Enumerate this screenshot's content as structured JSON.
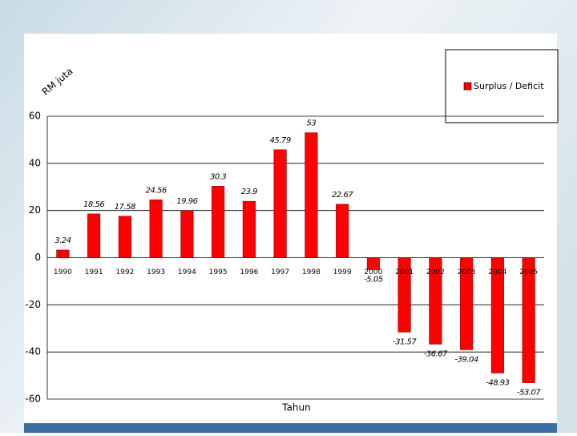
{
  "chart_data": {
    "type": "bar",
    "y_label": "RM juta",
    "x_label": "Tahun",
    "categories": [
      "1990",
      "1991",
      "1992",
      "1993",
      "1994",
      "1995",
      "1996",
      "1997",
      "1998",
      "1999",
      "2000",
      "2001",
      "2002",
      "2003",
      "2004",
      "2005"
    ],
    "series": [
      {
        "name": "Surplus / Deficit",
        "color": "#ff0000",
        "values": [
          3.24,
          18.56,
          17.58,
          24.56,
          19.96,
          30.3,
          23.9,
          45.79,
          53,
          22.67,
          -5.05,
          -31.57,
          -36.67,
          -39.04,
          -48.93,
          -53.07
        ]
      }
    ],
    "ylim": [
      -60,
      60
    ],
    "yticks": [
      -60,
      -40,
      -20,
      0,
      20,
      40,
      60
    ],
    "grid": true,
    "legend": "top-right"
  }
}
